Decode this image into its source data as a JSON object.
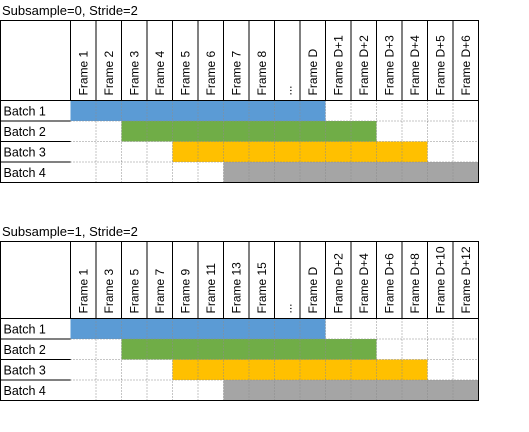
{
  "colors": {
    "batch_1": "#5b9bd5",
    "batch_2": "#70ad47",
    "batch_3": "#ffc000",
    "batch_4": "#a5a5a5",
    "grid": "#000000"
  },
  "tables": [
    {
      "title": "Subsample=0,  Stride=2",
      "headers": [
        "Frame 1",
        "Frame 2",
        "Frame 3",
        "Frame 4",
        "Frame 5",
        "Frame 6",
        "Frame 7",
        "Frame 8",
        "...",
        "Frame D",
        "Frame D+1",
        "Frame D+2",
        "Frame D+3",
        "Frame D+4",
        "Frame D+5",
        "Frame D+6"
      ],
      "rows": [
        {
          "label": "Batch 1",
          "start": 0,
          "end": 10,
          "color_key": "batch_1"
        },
        {
          "label": "Batch 2",
          "start": 2,
          "end": 12,
          "color_key": "batch_2"
        },
        {
          "label": "Batch 3",
          "start": 4,
          "end": 14,
          "color_key": "batch_3"
        },
        {
          "label": "Batch 4",
          "start": 6,
          "end": 16,
          "color_key": "batch_4"
        }
      ]
    },
    {
      "title": "Subsample=1,  Stride=2",
      "headers": [
        "Frame 1",
        "Frame 3",
        "Frame 5",
        "Frame 7",
        "Frame 9",
        "Frame 11",
        "Frame 13",
        "Frame 15",
        "...",
        "Frame D",
        "Frame D+2",
        "Frame D+4",
        "Frame D+6",
        "Frame D+8",
        "Frame D+10",
        "Frame D+12"
      ],
      "rows": [
        {
          "label": "Batch 1",
          "start": 0,
          "end": 10,
          "color_key": "batch_1"
        },
        {
          "label": "Batch 2",
          "start": 2,
          "end": 12,
          "color_key": "batch_2"
        },
        {
          "label": "Batch 3",
          "start": 4,
          "end": 14,
          "color_key": "batch_3"
        },
        {
          "label": "Batch 4",
          "start": 6,
          "end": 16,
          "color_key": "batch_4"
        }
      ]
    }
  ]
}
